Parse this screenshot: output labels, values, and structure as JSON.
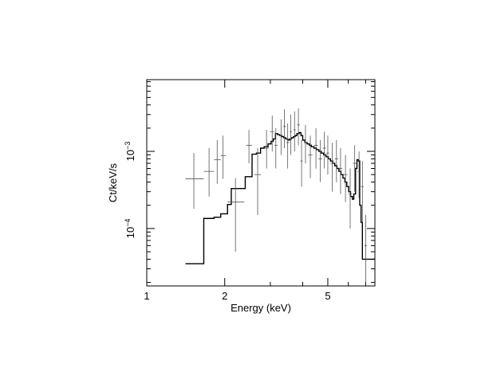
{
  "chart_data": {
    "type": "line",
    "title": "",
    "xlabel": "Energy (keV)",
    "ylabel": "Ct/keV/s",
    "xscale": "log",
    "yscale": "log",
    "xlim": [
      1,
      7.6
    ],
    "ylim": [
      1.8e-05,
      0.0085
    ],
    "grid": false,
    "legend": "none",
    "x_ticks": [
      {
        "value": 1,
        "label": "1"
      },
      {
        "value": 2,
        "label": "2"
      },
      {
        "value": 5,
        "label": "5"
      }
    ],
    "y_ticks": [
      {
        "value": 0.0001,
        "base": "10",
        "exponent": "−4"
      },
      {
        "value": 0.001,
        "base": "10",
        "exponent": "−3"
      }
    ],
    "series": [
      {
        "style": "error-bars",
        "points": [
          {
            "x": 1.52,
            "xlo": 1.41,
            "xhi": 1.66,
            "y": 0.00044,
            "ylo": 0.00018,
            "yhi": 0.00095
          },
          {
            "x": 1.74,
            "xlo": 1.66,
            "xhi": 1.82,
            "y": 0.00055,
            "ylo": 0.00026,
            "yhi": 0.0011
          },
          {
            "x": 1.87,
            "xlo": 1.82,
            "xhi": 1.93,
            "y": 0.00078,
            "ylo": 0.00038,
            "yhi": 0.0014
          },
          {
            "x": 1.97,
            "xlo": 1.93,
            "xhi": 2.02,
            "y": 0.00088,
            "ylo": 0.00044,
            "yhi": 0.0016
          },
          {
            "x": 2.2,
            "xlo": 2.05,
            "xhi": 2.38,
            "y": 0.00022,
            "ylo": 5e-05,
            "yhi": 0.00045
          },
          {
            "x": 2.48,
            "xlo": 2.42,
            "xhi": 2.55,
            "y": 0.0012,
            "ylo": 0.0007,
            "yhi": 0.0019
          },
          {
            "x": 2.68,
            "xlo": 2.6,
            "xhi": 2.76,
            "y": 0.0005,
            "ylo": 0.00015,
            "yhi": 0.0011
          },
          {
            "x": 2.9,
            "xlo": 2.84,
            "xhi": 2.96,
            "y": 0.0011,
            "ylo": 0.0006,
            "yhi": 0.0019
          },
          {
            "x": 3.05,
            "xlo": 2.99,
            "xhi": 3.11,
            "y": 0.0018,
            "ylo": 0.001,
            "yhi": 0.0029
          },
          {
            "x": 3.15,
            "xlo": 3.11,
            "xhi": 3.2,
            "y": 0.0012,
            "ylo": 0.0006,
            "yhi": 0.002
          },
          {
            "x": 3.3,
            "xlo": 3.25,
            "xhi": 3.35,
            "y": 0.0016,
            "ylo": 0.0009,
            "yhi": 0.0026
          },
          {
            "x": 3.4,
            "xlo": 3.36,
            "xhi": 3.45,
            "y": 0.0021,
            "ylo": 0.0011,
            "yhi": 0.0035
          },
          {
            "x": 3.5,
            "xlo": 3.46,
            "xhi": 3.55,
            "y": 0.0013,
            "ylo": 0.0006,
            "yhi": 0.0023
          },
          {
            "x": 3.6,
            "xlo": 3.56,
            "xhi": 3.64,
            "y": 0.0018,
            "ylo": 0.0009,
            "yhi": 0.003
          },
          {
            "x": 3.72,
            "xlo": 3.68,
            "xhi": 3.76,
            "y": 0.0019,
            "ylo": 0.001,
            "yhi": 0.0033
          },
          {
            "x": 3.85,
            "xlo": 3.8,
            "xhi": 3.9,
            "y": 0.0022,
            "ylo": 0.0012,
            "yhi": 0.0036
          },
          {
            "x": 3.96,
            "xlo": 3.92,
            "xhi": 4.0,
            "y": 0.00075,
            "ylo": 0.00035,
            "yhi": 0.0014
          },
          {
            "x": 4.1,
            "xlo": 4.05,
            "xhi": 4.15,
            "y": 0.0013,
            "ylo": 0.0007,
            "yhi": 0.0022
          },
          {
            "x": 4.28,
            "xlo": 4.2,
            "xhi": 4.36,
            "y": 0.0009,
            "ylo": 0.00045,
            "yhi": 0.0016
          },
          {
            "x": 4.5,
            "xlo": 4.42,
            "xhi": 4.58,
            "y": 0.0012,
            "ylo": 0.0006,
            "yhi": 0.002
          },
          {
            "x": 4.68,
            "xlo": 4.6,
            "xhi": 4.76,
            "y": 0.0008,
            "ylo": 0.0004,
            "yhi": 0.0014
          },
          {
            "x": 4.85,
            "xlo": 4.78,
            "xhi": 4.92,
            "y": 0.0011,
            "ylo": 0.0006,
            "yhi": 0.0018
          },
          {
            "x": 5.0,
            "xlo": 4.94,
            "xhi": 5.06,
            "y": 0.00095,
            "ylo": 0.0005,
            "yhi": 0.0016
          },
          {
            "x": 5.2,
            "xlo": 5.12,
            "xhi": 5.28,
            "y": 0.0007,
            "ylo": 0.0003,
            "yhi": 0.0013
          },
          {
            "x": 5.4,
            "xlo": 5.32,
            "xhi": 5.48,
            "y": 0.0008,
            "ylo": 0.0004,
            "yhi": 0.0014
          },
          {
            "x": 5.6,
            "xlo": 5.52,
            "xhi": 5.68,
            "y": 0.0006,
            "ylo": 0.00028,
            "yhi": 0.0011
          },
          {
            "x": 5.85,
            "xlo": 5.75,
            "xhi": 5.95,
            "y": 0.0005,
            "ylo": 0.00022,
            "yhi": 0.0009
          },
          {
            "x": 6.1,
            "xlo": 6.0,
            "xhi": 6.2,
            "y": 0.00028,
            "ylo": 0.0001,
            "yhi": 0.0006
          },
          {
            "x": 6.35,
            "xlo": 6.25,
            "xhi": 6.45,
            "y": 0.0007,
            "ylo": 0.0003,
            "yhi": 0.0012
          },
          {
            "x": 6.6,
            "xlo": 6.52,
            "xhi": 6.68,
            "y": 0.00055,
            "ylo": 0.00025,
            "yhi": 0.001
          },
          {
            "x": 6.8,
            "xlo": 6.72,
            "xhi": 6.88,
            "y": 0.00035,
            "ylo": 0.00012,
            "yhi": 0.00075
          },
          {
            "x": 7.0,
            "xlo": 6.92,
            "xhi": 7.08,
            "y": 6e-05,
            "ylo": 2e-05,
            "yhi": 0.00015
          }
        ]
      },
      {
        "style": "step",
        "steps": [
          [
            1.41,
            3.5e-05
          ],
          [
            1.66,
            0.000135
          ],
          [
            1.82,
            0.00014
          ],
          [
            1.93,
            0.000155
          ],
          [
            2.05,
            0.000205
          ],
          [
            2.12,
            0.00033
          ],
          [
            2.4,
            0.00047
          ],
          [
            2.55,
            0.00092
          ],
          [
            2.65,
            0.00095
          ],
          [
            2.75,
            0.0011
          ],
          [
            2.84,
            0.00115
          ],
          [
            2.94,
            0.00125
          ],
          [
            3.02,
            0.00135
          ],
          [
            3.08,
            0.00145
          ],
          [
            3.14,
            0.0017
          ],
          [
            3.2,
            0.00165
          ],
          [
            3.26,
            0.0016
          ],
          [
            3.32,
            0.00155
          ],
          [
            3.38,
            0.0015
          ],
          [
            3.44,
            0.00145
          ],
          [
            3.5,
            0.0014
          ],
          [
            3.56,
            0.00145
          ],
          [
            3.62,
            0.0015
          ],
          [
            3.68,
            0.00155
          ],
          [
            3.74,
            0.0016
          ],
          [
            3.8,
            0.0017
          ],
          [
            3.88,
            0.00175
          ],
          [
            3.94,
            0.0016
          ],
          [
            4.0,
            0.0014
          ],
          [
            4.08,
            0.0013
          ],
          [
            4.16,
            0.00125
          ],
          [
            4.24,
            0.0012
          ],
          [
            4.32,
            0.00115
          ],
          [
            4.42,
            0.0011
          ],
          [
            4.52,
            0.00105
          ],
          [
            4.62,
            0.001
          ],
          [
            4.72,
            0.00095
          ],
          [
            4.82,
            0.0009
          ],
          [
            4.92,
            0.00085
          ],
          [
            5.02,
            0.0008
          ],
          [
            5.12,
            0.00075
          ],
          [
            5.22,
            0.0007
          ],
          [
            5.32,
            0.00065
          ],
          [
            5.42,
            0.0006
          ],
          [
            5.52,
            0.00055
          ],
          [
            5.62,
            0.0005
          ],
          [
            5.72,
            0.00045
          ],
          [
            5.82,
            0.0004
          ],
          [
            5.92,
            0.00035
          ],
          [
            6.02,
            0.0003
          ],
          [
            6.12,
            0.00026
          ],
          [
            6.22,
            0.00024
          ],
          [
            6.3,
            0.00028
          ],
          [
            6.4,
            0.0006
          ],
          [
            6.48,
            0.00078
          ],
          [
            6.56,
            0.00075
          ],
          [
            6.64,
            0.0002
          ],
          [
            6.72,
            0.00012
          ],
          [
            6.8,
            4e-05
          ],
          [
            7.6,
            4e-05
          ]
        ]
      }
    ]
  }
}
